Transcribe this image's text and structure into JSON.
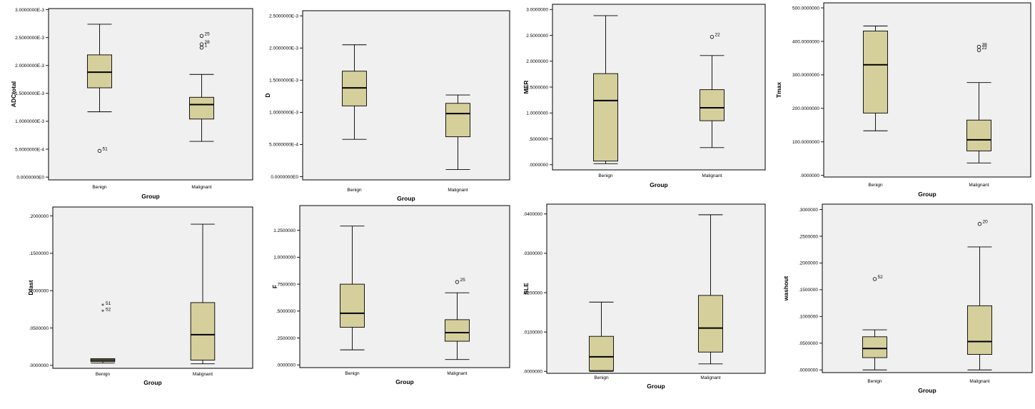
{
  "chart_data": [
    {
      "type": "boxplot",
      "ylabel": "ADCtotal",
      "xlabel": "Group",
      "categories": [
        "Benign",
        "Malignant"
      ],
      "ylim": [
        -5e-05,
        0.00302
      ],
      "yticks": [
        0,
        0.0005,
        0.001,
        0.0015,
        0.002,
        0.0025,
        0.003
      ],
      "ytick_labels": [
        "0.0000000E0",
        "5.0000000E-4",
        "1.0000000E-3",
        "1.5000000E-3",
        "2.0000000E-3",
        "2.5000000E-3",
        "3.0000000E-3"
      ],
      "boxes": [
        {
          "group": "Benign",
          "min": 0.00117,
          "q1": 0.0016,
          "median": 0.00188,
          "q3": 0.00219,
          "max": 0.00274
        },
        {
          "group": "Malignant",
          "min": 0.00064,
          "q1": 0.00104,
          "median": 0.0013,
          "q3": 0.00143,
          "max": 0.00184
        }
      ],
      "outliers": [
        {
          "group": "Benign",
          "value": 0.00047,
          "label": "51",
          "marker": "circle"
        },
        {
          "group": "Malignant",
          "value": 0.00253,
          "label": "25",
          "marker": "circle"
        },
        {
          "group": "Malignant",
          "value": 0.00238,
          "label": "28",
          "marker": "circle"
        },
        {
          "group": "Malignant",
          "value": 0.00232,
          "label": "1",
          "marker": "circle"
        }
      ]
    },
    {
      "type": "boxplot",
      "ylabel": "D",
      "xlabel": "Group",
      "categories": [
        "Benign",
        "Malignant"
      ],
      "ylim": [
        -5e-05,
        0.00258
      ],
      "yticks": [
        0,
        0.0005,
        0.001,
        0.0015,
        0.002,
        0.0025
      ],
      "ytick_labels": [
        "0.0000000E0",
        "5.0000000E-4",
        "1.0000000E-3",
        "1.5000000E-3",
        "2.0000000E-3",
        "2.5000000E-3"
      ],
      "boxes": [
        {
          "group": "Benign",
          "min": 0.00058,
          "q1": 0.0011,
          "median": 0.00138,
          "q3": 0.00164,
          "max": 0.00205
        },
        {
          "group": "Malignant",
          "min": 0.00011,
          "q1": 0.00062,
          "median": 0.00098,
          "q3": 0.00114,
          "max": 0.00127
        }
      ],
      "outliers": []
    },
    {
      "type": "boxplot",
      "ylabel": "MER",
      "xlabel": "Group",
      "categories": [
        "Benign",
        "Malignant"
      ],
      "ylim": [
        -0.1,
        3.1
      ],
      "yticks": [
        0,
        0.5,
        1.0,
        1.5,
        2.0,
        2.5,
        3.0
      ],
      "ytick_labels": [
        ".0000000",
        ".5000000",
        "1.0000000",
        "1.5000000",
        "2.0000000",
        "2.5000000",
        "3.0000000"
      ],
      "boxes": [
        {
          "group": "Benign",
          "min": 0.02,
          "q1": 0.07,
          "median": 1.24,
          "q3": 1.76,
          "max": 2.88
        },
        {
          "group": "Malignant",
          "min": 0.33,
          "q1": 0.85,
          "median": 1.1,
          "q3": 1.45,
          "max": 2.11
        }
      ],
      "outliers": [
        {
          "group": "Malignant",
          "value": 2.47,
          "label": "22",
          "marker": "circle"
        }
      ]
    },
    {
      "type": "boxplot",
      "ylabel": "Tmax",
      "xlabel": "Group",
      "categories": [
        "Benign",
        "Malignant"
      ],
      "ylim": [
        -5,
        515
      ],
      "yticks": [
        0,
        100,
        200,
        300,
        400,
        500
      ],
      "ytick_labels": [
        ".0000000",
        "100.0000000",
        "200.0000000",
        "300.0000000",
        "400.0000000",
        "500.0000000"
      ],
      "boxes": [
        {
          "group": "Benign",
          "min": 133,
          "q1": 186,
          "median": 330,
          "q3": 431,
          "max": 446
        },
        {
          "group": "Malignant",
          "min": 37,
          "q1": 73,
          "median": 106,
          "q3": 165,
          "max": 277
        }
      ],
      "outliers": [
        {
          "group": "Malignant",
          "value": 384,
          "label": "38",
          "marker": "circle"
        },
        {
          "group": "Malignant",
          "value": 374,
          "label": "22",
          "marker": "circle"
        }
      ]
    },
    {
      "type": "boxplot",
      "ylabel": "Dfast",
      "xlabel": "Group",
      "categories": [
        "Benign",
        "Malignant"
      ],
      "ylim": [
        -0.004,
        0.212
      ],
      "yticks": [
        0,
        0.05,
        0.1,
        0.15,
        0.2
      ],
      "ytick_labels": [
        ".0000000",
        ".0500000",
        ".1000000",
        ".1500000",
        ".2000000"
      ],
      "boxes": [
        {
          "group": "Benign",
          "min": 0.003,
          "q1": 0.005,
          "median": 0.007,
          "q3": 0.009,
          "max": 0.009
        },
        {
          "group": "Malignant",
          "min": 0.002,
          "q1": 0.007,
          "median": 0.041,
          "q3": 0.084,
          "max": 0.189
        }
      ],
      "outliers": [
        {
          "group": "Benign",
          "value": 0.08,
          "label": "51",
          "marker": "star"
        },
        {
          "group": "Benign",
          "value": 0.072,
          "label": "52",
          "marker": "star"
        }
      ]
    },
    {
      "type": "boxplot",
      "ylabel": "F",
      "xlabel": "Group",
      "categories": [
        "Benign",
        "Malignant"
      ],
      "ylim": [
        -0.025,
        1.48
      ],
      "yticks": [
        0,
        0.25,
        0.5,
        0.75,
        1.0,
        1.25
      ],
      "ytick_labels": [
        ".0000000",
        ".2500000",
        ".5000000",
        ".7500000",
        "1.0000000",
        "1.2500000"
      ],
      "boxes": [
        {
          "group": "Benign",
          "min": 0.14,
          "q1": 0.35,
          "median": 0.48,
          "q3": 0.75,
          "max": 1.29
        },
        {
          "group": "Malignant",
          "min": 0.05,
          "q1": 0.22,
          "median": 0.3,
          "q3": 0.42,
          "max": 0.67
        }
      ],
      "outliers": [
        {
          "group": "Malignant",
          "value": 0.77,
          "label": "25",
          "marker": "circle"
        }
      ]
    },
    {
      "type": "boxplot",
      "ylabel": "SLE",
      "xlabel": "Group",
      "categories": [
        "Benign",
        "Malignant"
      ],
      "ylim": [
        -0.0005,
        0.0425
      ],
      "yticks": [
        0,
        0.01,
        0.02,
        0.03,
        0.04
      ],
      "ytick_labels": [
        ".0000000",
        ".0100000",
        ".0200000",
        ".0300000",
        ".0400000"
      ],
      "boxes": [
        {
          "group": "Benign",
          "min": 0.0,
          "q1": 0.0002,
          "median": 0.0037,
          "q3": 0.0089,
          "max": 0.0176
        },
        {
          "group": "Malignant",
          "min": 0.0019,
          "q1": 0.0049,
          "median": 0.011,
          "q3": 0.0193,
          "max": 0.0398
        }
      ],
      "outliers": []
    },
    {
      "type": "boxplot",
      "ylabel": "washout",
      "xlabel": "Group",
      "categories": [
        "Benign",
        "Malignant"
      ],
      "ylim": [
        -0.005,
        0.31
      ],
      "yticks": [
        0,
        0.05,
        0.1,
        0.15,
        0.2,
        0.25,
        0.3
      ],
      "ytick_labels": [
        ".0000000",
        ".0500000",
        ".1000000",
        ".1500000",
        ".2000000",
        ".2500000",
        ".3000000"
      ],
      "boxes": [
        {
          "group": "Benign",
          "min": 0.0,
          "q1": 0.023,
          "median": 0.04,
          "q3": 0.062,
          "max": 0.075
        },
        {
          "group": "Malignant",
          "min": 0.0,
          "q1": 0.029,
          "median": 0.053,
          "q3": 0.12,
          "max": 0.23
        }
      ],
      "outliers": [
        {
          "group": "Benign",
          "value": 0.17,
          "label": "52",
          "marker": "circle"
        },
        {
          "group": "Malignant",
          "value": 0.273,
          "label": "20",
          "marker": "circle"
        }
      ]
    }
  ]
}
